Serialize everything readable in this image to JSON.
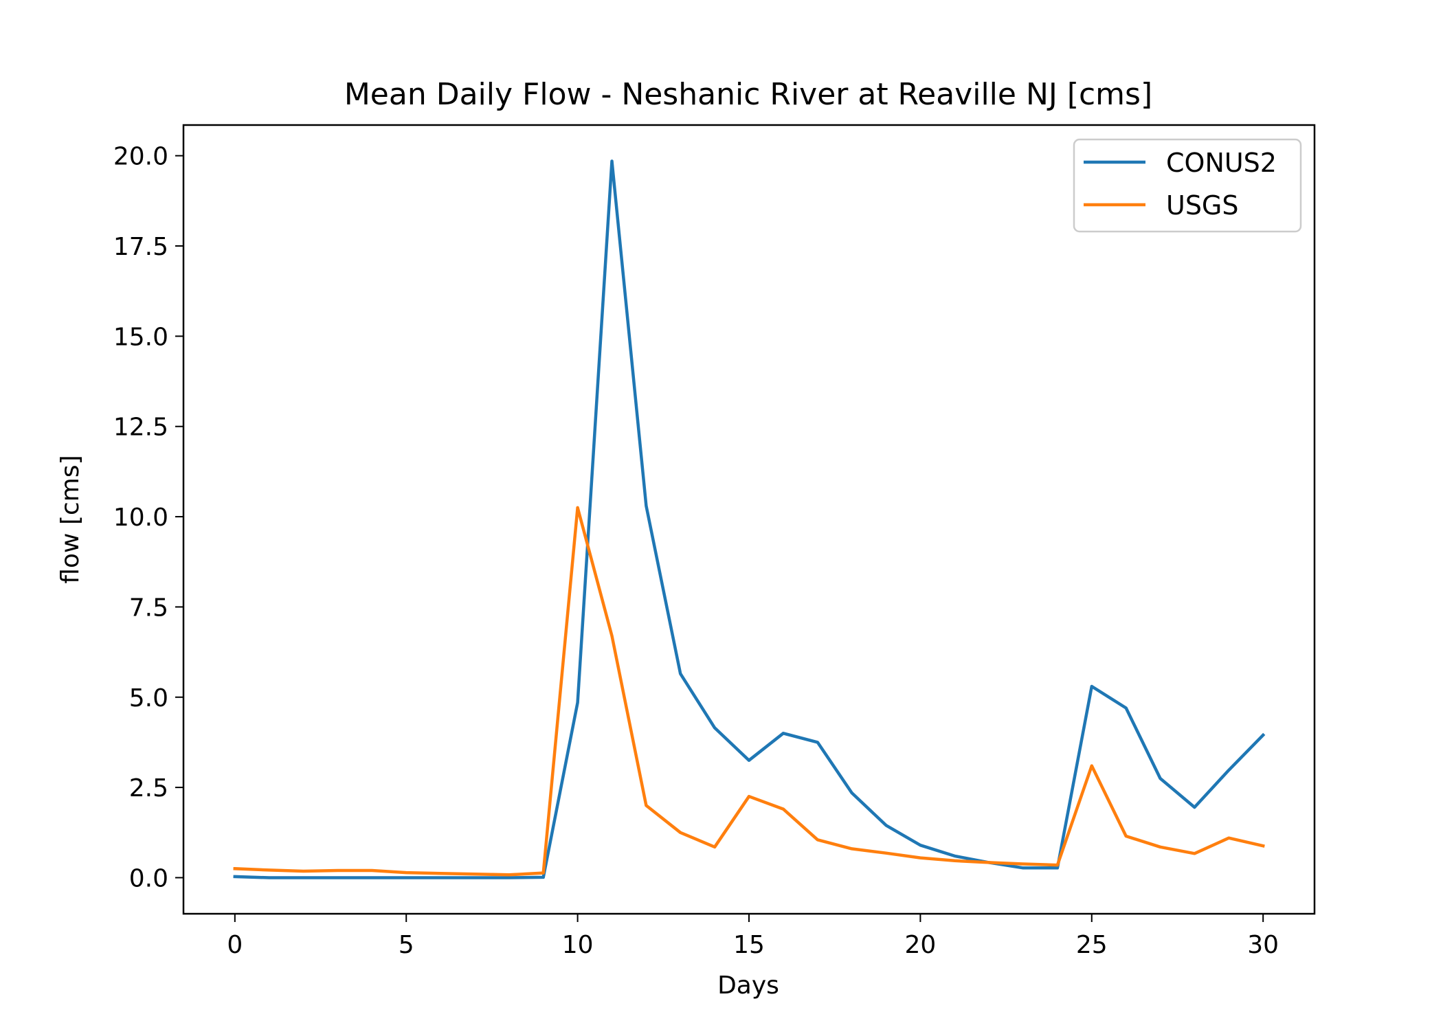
{
  "chart_data": {
    "type": "line",
    "title": "Mean Daily Flow - Neshanic River at Reaville NJ [cms]",
    "xlabel": "Days",
    "ylabel": "flow [cms]",
    "xlim": [
      -1.5,
      31.5
    ],
    "ylim": [
      -1.0,
      20.85
    ],
    "xticks": [
      0,
      5,
      10,
      15,
      20,
      25,
      30
    ],
    "xtick_labels": [
      "0",
      "5",
      "10",
      "15",
      "20",
      "25",
      "30"
    ],
    "yticks": [
      0,
      2.5,
      5,
      7.5,
      10,
      12.5,
      15,
      17.5,
      20
    ],
    "ytick_labels": [
      "0.0",
      "2.5",
      "5.0",
      "7.5",
      "10.0",
      "12.5",
      "15.0",
      "17.5",
      "20.0"
    ],
    "grid": false,
    "legend_position": "top-right",
    "x": [
      0,
      1,
      2,
      3,
      4,
      5,
      6,
      7,
      8,
      9,
      10,
      11,
      12,
      13,
      14,
      15,
      16,
      17,
      18,
      19,
      20,
      21,
      22,
      23,
      24,
      25,
      26,
      27,
      28,
      29,
      30
    ],
    "series": [
      {
        "name": "CONUS2",
        "color": "#1f77b4",
        "values": [
          0.03,
          0.0,
          0.0,
          0.0,
          0.0,
          0.0,
          0.0,
          0.0,
          0.0,
          0.01,
          4.85,
          19.85,
          10.3,
          5.65,
          4.15,
          3.25,
          4.0,
          3.75,
          2.35,
          1.45,
          0.9,
          0.6,
          0.42,
          0.27,
          0.27,
          5.3,
          4.7,
          2.75,
          1.95,
          2.98,
          3.95
        ]
      },
      {
        "name": "USGS",
        "color": "#ff7f0e",
        "values": [
          0.25,
          0.21,
          0.18,
          0.2,
          0.2,
          0.14,
          0.12,
          0.1,
          0.08,
          0.13,
          10.25,
          6.7,
          2.0,
          1.25,
          0.85,
          2.25,
          1.9,
          1.05,
          0.8,
          0.68,
          0.55,
          0.47,
          0.42,
          0.38,
          0.35,
          3.1,
          1.15,
          0.85,
          0.67,
          1.1,
          0.88
        ]
      }
    ]
  }
}
